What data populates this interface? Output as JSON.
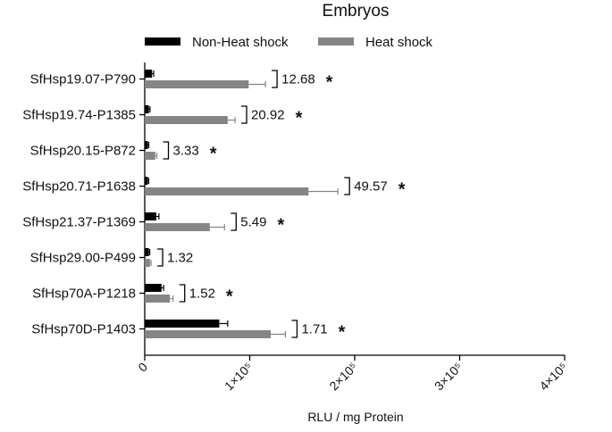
{
  "chart_data": {
    "type": "bar",
    "orientation": "horizontal",
    "title": "Embryos",
    "xlabel": "RLU / mg Protein",
    "ylabel": "",
    "xlim": [
      0,
      400000
    ],
    "x_ticks": [
      {
        "value": 0,
        "label": "0"
      },
      {
        "value": 100000,
        "label": "1×10⁵"
      },
      {
        "value": 200000,
        "label": "2×10⁵"
      },
      {
        "value": 300000,
        "label": "3×10⁵"
      },
      {
        "value": 400000,
        "label": "4×10⁵"
      }
    ],
    "legend_position": "top",
    "categories": [
      "SfHsp19.07-P790",
      "SfHsp19.74-P1385",
      "SfHsp20.15-P872",
      "SfHsp20.71-P1638",
      "SfHsp21.37-P1369",
      "SfHsp29.00-P499",
      "SfHsp70A-P1218",
      "SfHsp70D-P1403"
    ],
    "series": [
      {
        "name": "Non-Heat shock",
        "color": "#000000",
        "values": [
          7000,
          4000,
          3000,
          3000,
          11000,
          4000,
          16000,
          71000
        ],
        "errors": [
          1500,
          1000,
          800,
          800,
          2500,
          800,
          2000,
          8000
        ]
      },
      {
        "name": "Heat shock",
        "color": "#858585",
        "values": [
          99000,
          79000,
          10000,
          156000,
          62000,
          5000,
          24000,
          120000
        ],
        "errors": [
          16000,
          7000,
          1500,
          28000,
          14000,
          1000,
          3000,
          14000
        ]
      }
    ],
    "annotations": [
      {
        "fold": "12.68",
        "significant": true
      },
      {
        "fold": "20.92",
        "significant": true
      },
      {
        "fold": "3.33",
        "significant": true
      },
      {
        "fold": "49.57",
        "significant": true
      },
      {
        "fold": "5.49",
        "significant": true
      },
      {
        "fold": "1.32",
        "significant": false
      },
      {
        "fold": "1.52",
        "significant": true
      },
      {
        "fold": "1.71",
        "significant": true
      }
    ],
    "significance_marker": "*"
  }
}
